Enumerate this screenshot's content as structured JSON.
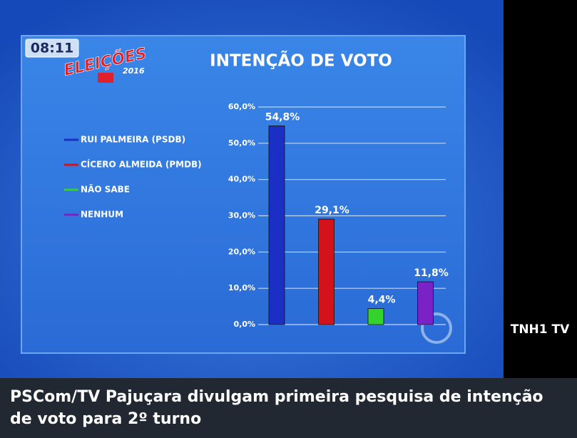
{
  "chart_data": {
    "type": "bar",
    "title": "INTENÇÃO DE VOTO",
    "categories": [
      "RUI PALMEIRA (PSDB)",
      "CÍCERO ALMEIDA (PMDB)",
      "NÃO SABE",
      "NENHUM"
    ],
    "values": [
      54.8,
      29.1,
      4.4,
      11.8
    ],
    "value_labels": [
      "54,8%",
      "29,1%",
      "4,4%",
      "11,8%"
    ],
    "colors": [
      "#1b2fc4",
      "#d3121c",
      "#33d22c",
      "#7a22c6"
    ],
    "ylim": [
      0,
      60
    ],
    "yticks": [
      {
        "value": 0,
        "label": "0,0%"
      },
      {
        "value": 10,
        "label": "10,0%"
      },
      {
        "value": 20,
        "label": "20,0%"
      },
      {
        "value": 30,
        "label": "30,0%"
      },
      {
        "value": 40,
        "label": "40,0%"
      },
      {
        "value": 50,
        "label": "50,0%"
      },
      {
        "value": 60,
        "label": "60,0%"
      }
    ],
    "grid": true
  },
  "overlay": {
    "time": "08:11",
    "election": "ELEIÇÕES",
    "year": "2016",
    "channel": "TNH1 TV"
  },
  "caption": "PSCom/TV Pajuçara divulgam primeira pesquisa de intenção de voto para 2º turno"
}
